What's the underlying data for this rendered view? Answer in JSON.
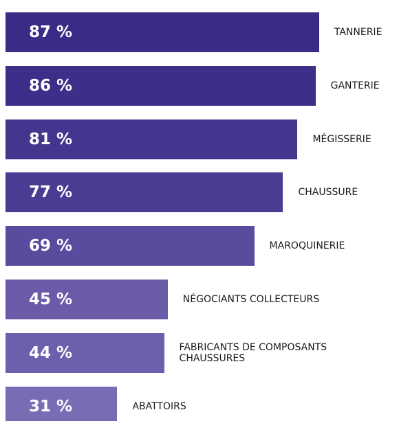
{
  "chart_data": {
    "type": "hbar",
    "categories": [
      "TANNERIE",
      "GANTERIE",
      "MÉGISSERIE",
      "CHAUSSURE",
      "MAROQUINERIE",
      "NÉGOCIANTS COLLECTEURS",
      "FABRICANTS DE COMPOSANTS CHAUSSURES",
      "ABATTOIRS"
    ],
    "values": [
      87,
      86,
      81,
      77,
      69,
      45,
      44,
      31
    ],
    "value_labels": [
      "87 %",
      "86 %",
      "81 %",
      "77 %",
      "69 %",
      "45 %",
      "44 %",
      "31 %"
    ],
    "colors": [
      "#3b2b86",
      "#3e2e89",
      "#45358e",
      "#4b3c93",
      "#5a4b9f",
      "#6a5aa8",
      "#6e5fac",
      "#7a6cb4"
    ]
  }
}
